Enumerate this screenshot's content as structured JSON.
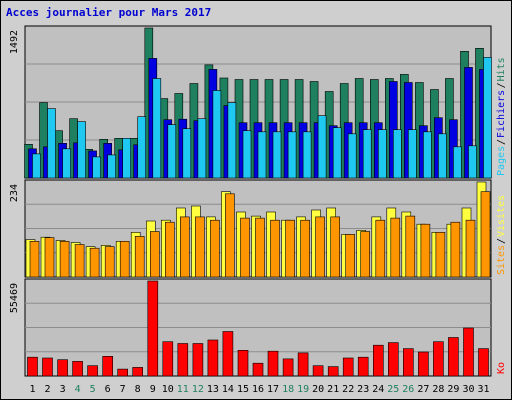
{
  "chart_data": {
    "type": "bar",
    "title": "Acces journalier pour Mars 2017",
    "categories": [
      "1",
      "2",
      "3",
      "4",
      "5",
      "6",
      "7",
      "8",
      "9",
      "10",
      "11",
      "12",
      "13",
      "14",
      "15",
      "16",
      "17",
      "18",
      "19",
      "20",
      "21",
      "22",
      "23",
      "24",
      "25",
      "26",
      "27",
      "28",
      "29",
      "30",
      "31"
    ],
    "weekend_days": [
      "4",
      "5",
      "11",
      "12",
      "18",
      "19",
      "25",
      "26"
    ],
    "panels": [
      {
        "id": "hits-files-pages",
        "ymax_label": "1492",
        "ylim": [
          0,
          1492
        ],
        "grid": true,
        "right_labels": [
          "Pages",
          "Fichiers",
          "Hits"
        ],
        "series": [
          {
            "name": "Hits",
            "values": [
              335,
              750,
              470,
              590,
              285,
              385,
              395,
              395,
              1492,
              790,
              840,
              940,
              1125,
              995,
              980,
              980,
              980,
              980,
              980,
              960,
              860,
              940,
              990,
              980,
              990,
              1030,
              950,
              880,
              990,
              1260,
              1290
            ]
          },
          {
            "name": "Fichiers",
            "values": [
              290,
              310,
              345,
              350,
              270,
              345,
              280,
              330,
              1190,
              580,
              585,
              570,
              1080,
              720,
              550,
              550,
              550,
              550,
              550,
              550,
              520,
              550,
              550,
              550,
              960,
              950,
              520,
              600,
              580,
              1100,
              1080
            ]
          },
          {
            "name": "Pages",
            "values": [
              240,
              690,
              290,
              560,
              210,
              230,
              395,
              610,
              990,
              530,
              490,
              590,
              870,
              750,
              470,
              460,
              460,
              460,
              460,
              620,
              500,
              440,
              480,
              480,
              480,
              480,
              460,
              440,
              310,
              320,
              1200
            ]
          }
        ],
        "colors": {
          "Hits": "#1f8060",
          "Fichiers": "#0000e0",
          "Pages": "#1ec8f0"
        }
      },
      {
        "id": "sites-visites",
        "ymax_label": "234",
        "ylim": [
          0,
          234
        ],
        "grid": true,
        "right_labels": [
          "Sites",
          "Visites"
        ],
        "series": [
          {
            "name": "Visites",
            "values": [
              92,
              98,
              90,
              85,
              75,
              78,
              88,
              110,
              138,
              140,
              170,
              175,
              148,
              210,
              160,
              150,
              160,
              140,
              148,
              165,
              170,
              105,
              115,
              148,
              170,
              160,
              130,
              110,
              130,
              170,
              234
            ]
          },
          {
            "name": "Sites",
            "values": [
              88,
              97,
              88,
              80,
              71,
              75,
              88,
              100,
              112,
              135,
              148,
              148,
              140,
              205,
              145,
              145,
              140,
              140,
              140,
              148,
              148,
              105,
              112,
              140,
              145,
              150,
              130,
              110,
              135,
              140,
              210
            ]
          }
        ],
        "colors": {
          "Visites": "#ffff40",
          "Sites": "#ff9600"
        }
      },
      {
        "id": "ko",
        "ymax_label": "55469",
        "ylim": [
          0,
          55469
        ],
        "grid": true,
        "right_labels": [
          "Ko"
        ],
        "series": [
          {
            "name": "Ko",
            "values": [
              11000,
              10500,
              9500,
              8500,
              6000,
              11500,
              4000,
              5000,
              55469,
              20000,
              19000,
              19000,
              21000,
              26000,
              15000,
              7500,
              14500,
              10000,
              13500,
              6000,
              5500,
              10500,
              11000,
              18000,
              19500,
              16000,
              14000,
              20000,
              22500,
              28000,
              16000
            ]
          }
        ],
        "colors": {
          "Ko": "#ff0000"
        }
      }
    ]
  }
}
